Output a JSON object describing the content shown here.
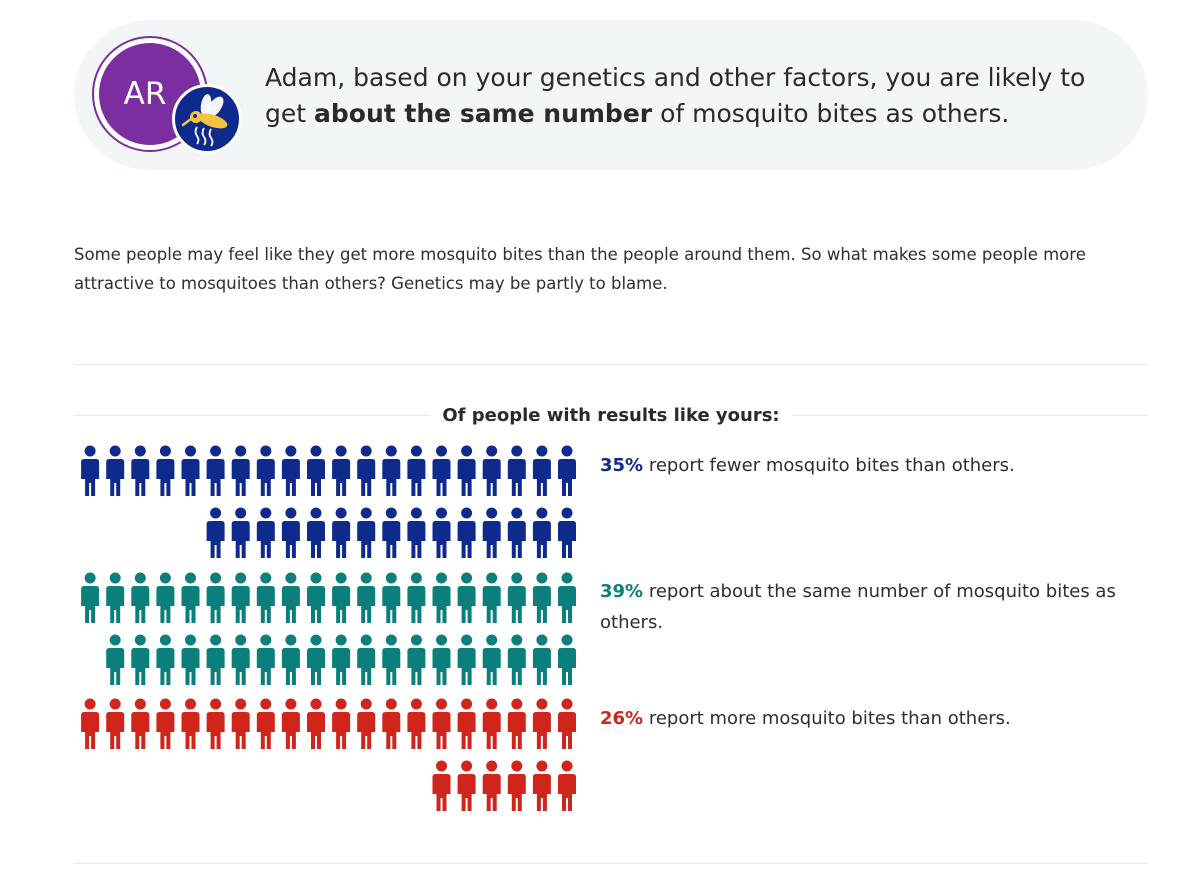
{
  "header": {
    "avatar_initials": "AR",
    "message_before": "Adam, based on your genetics and other factors, you are likely to get",
    "message_bold": "about the same number",
    "message_after": "of mosquito bites as others."
  },
  "intro_text": "Some people may feel like they get more mosquito bites than the people around them. So what makes some people more attractive to mosquitoes than others? Genetics may be partly to blame.",
  "section_title": "Of people with results like yours:",
  "groups": [
    {
      "percent": 35,
      "percent_label": "35%",
      "text": "report fewer mosquito bites than others.",
      "color": "#0e2a8c"
    },
    {
      "percent": 39,
      "percent_label": "39%",
      "text": "report about the same number of mosquito bites as others.",
      "color": "#0a7f7c"
    },
    {
      "percent": 26,
      "percent_label": "26%",
      "text": "report more mosquito bites than others.",
      "color": "#d0251b"
    }
  ],
  "icons": {
    "person": "person-icon",
    "mosquito": "mosquito-icon"
  }
}
